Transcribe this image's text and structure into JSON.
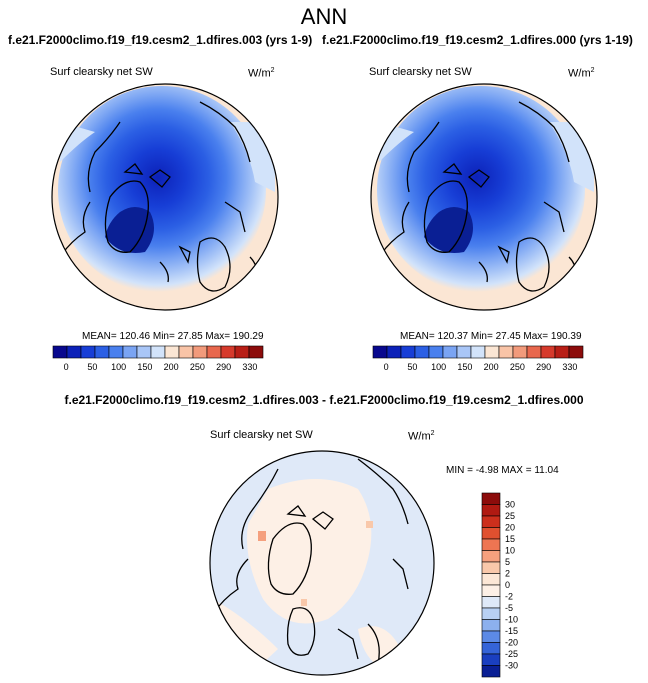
{
  "page_title": "ANN",
  "chart_data": [
    {
      "type": "heatmap",
      "title": "f.e21.F2000climo.f19_f19.cesm2_1.dfires.003 (yrs 1-9)",
      "variable": "Surf clearsky net SW",
      "units_base": "W/m",
      "units_exp": "2",
      "stats": "MEAN= 120.46  Min=  27.85  Max= 190.29",
      "mean": 120.46,
      "min": 27.85,
      "max": 190.29,
      "colorbar": {
        "orientation": "horizontal",
        "tick_labels": [
          "0",
          "50",
          "100",
          "150",
          "200",
          "250",
          "290",
          "330"
        ],
        "colors": [
          "#08088e",
          "#0c21b8",
          "#173ed6",
          "#2b5fe4",
          "#4a80ee",
          "#7aa4f3",
          "#a9c6f7",
          "#d2e3fa",
          "#fbe6d4",
          "#f9c4a7",
          "#f29a7b",
          "#e8674d",
          "#d63a2c",
          "#b81e16",
          "#8c0c0b"
        ]
      }
    },
    {
      "type": "heatmap",
      "title": "f.e21.F2000climo.f19_f19.cesm2_1.dfires.000 (yrs 1-19)",
      "variable": "Surf clearsky net SW",
      "units_base": "W/m",
      "units_exp": "2",
      "stats": "MEAN= 120.37  Min=  27.45  Max= 190.39",
      "mean": 120.37,
      "min": 27.45,
      "max": 190.39,
      "colorbar": {
        "orientation": "horizontal",
        "tick_labels": [
          "0",
          "50",
          "100",
          "150",
          "200",
          "250",
          "290",
          "330"
        ],
        "colors": [
          "#08088e",
          "#0c21b8",
          "#173ed6",
          "#2b5fe4",
          "#4a80ee",
          "#7aa4f3",
          "#a9c6f7",
          "#d2e3fa",
          "#fbe6d4",
          "#f9c4a7",
          "#f29a7b",
          "#e8674d",
          "#d63a2c",
          "#b81e16",
          "#8c0c0b"
        ]
      }
    },
    {
      "type": "heatmap",
      "title": "f.e21.F2000climo.f19_f19.cesm2_1.dfires.003 - f.e21.F2000climo.f19_f19.cesm2_1.dfires.000",
      "variable": "Surf clearsky net SW",
      "units_base": "W/m",
      "units_exp": "2",
      "stats": "MIN = -4.98 MAX = 11.04",
      "min": -4.98,
      "max": 11.04,
      "colorbar": {
        "orientation": "vertical",
        "tick_labels": [
          "30",
          "25",
          "20",
          "15",
          "10",
          "5",
          "2",
          "0",
          "-2",
          "-5",
          "-10",
          "-15",
          "-20",
          "-25",
          "-30"
        ],
        "colors": [
          "#8c0c0b",
          "#b01a12",
          "#cc2f1c",
          "#e0502f",
          "#ee7552",
          "#f5a07e",
          "#f9c8aa",
          "#fce7d6",
          "#fdf0e6",
          "#dfe9f8",
          "#b8d0f3",
          "#8cb0ee",
          "#5c8ae6",
          "#3564d8",
          "#1a3fc0",
          "#0a1f94"
        ]
      }
    }
  ]
}
